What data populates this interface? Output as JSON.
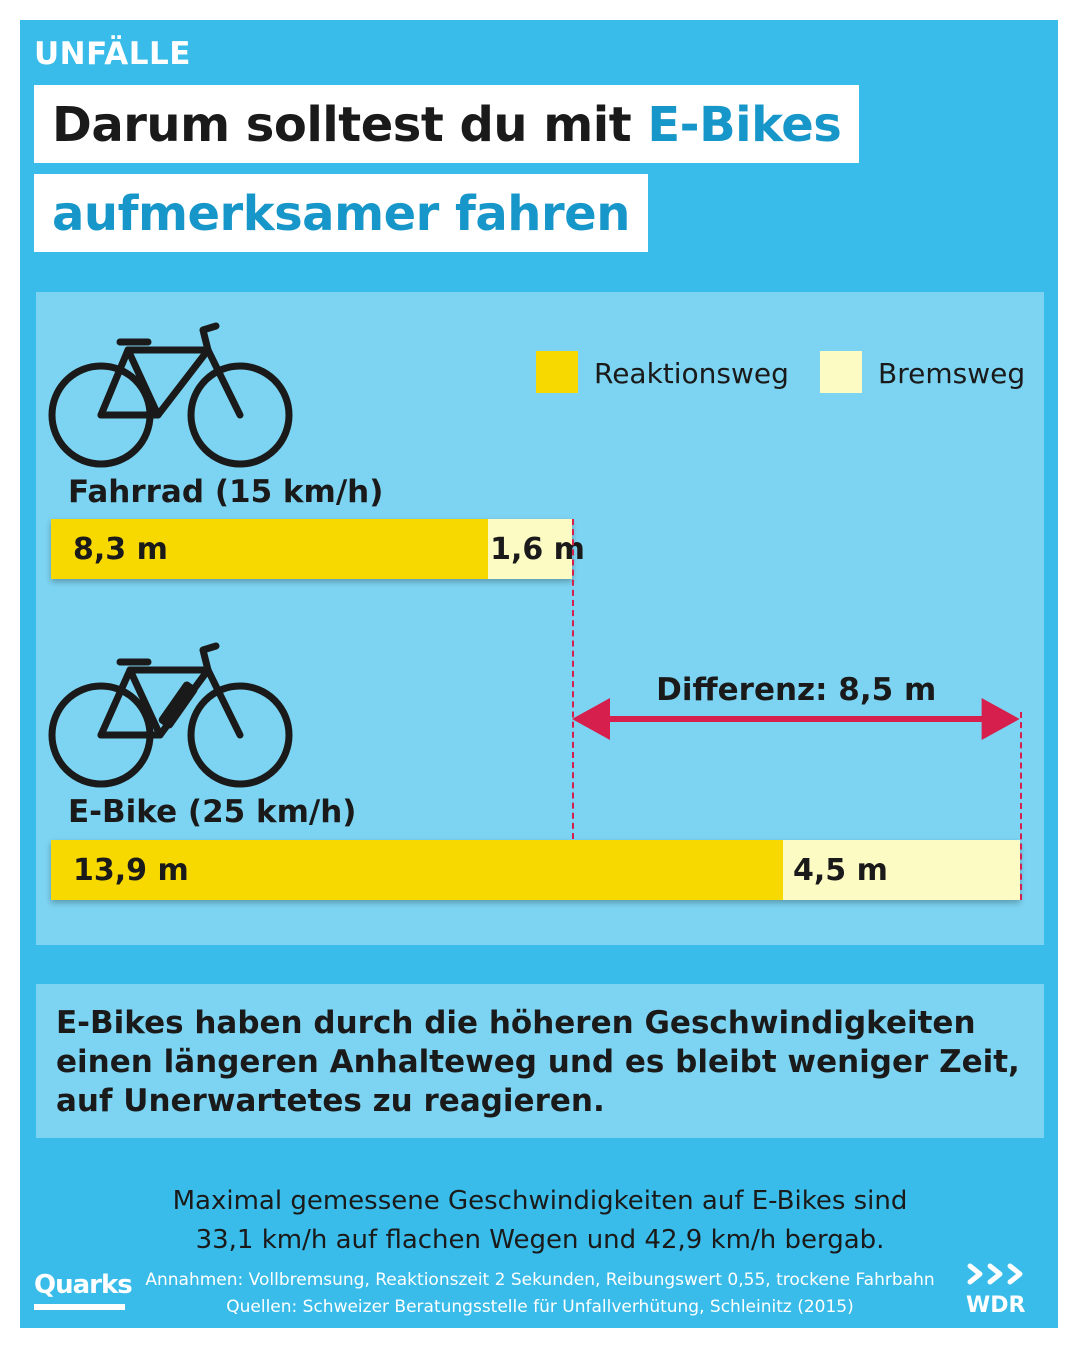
{
  "kicker": "UNFÄLLE",
  "title": {
    "line1_plain": "Darum solltest du mit ",
    "line1_accent": "E-Bikes",
    "line2_accent": "aufmerksamer fahren"
  },
  "colors": {
    "background": "#39bce9",
    "panel": "#7dd4f2",
    "reaktionsweg": "#f7d900",
    "bremsweg": "#fdfbc4",
    "accent_text": "#1797c9",
    "difference_marker": "#d61f4d"
  },
  "icons": [
    "bicycle-icon",
    "e-bike-icon",
    "double-arrow-icon"
  ],
  "chart_data": {
    "type": "bar",
    "orientation": "horizontal",
    "stacked": true,
    "unit": "m",
    "categories": [
      "Fahrrad (15 km/h)",
      "E-Bike (25 km/h)"
    ],
    "series": [
      {
        "name": "Reaktionsweg",
        "values": [
          8.3,
          13.9
        ],
        "labels": [
          "8,3 m",
          "13,9 m"
        ]
      },
      {
        "name": "Bremsweg",
        "values": [
          1.6,
          4.5
        ],
        "labels": [
          "1,6 m",
          "4,5 m"
        ]
      }
    ],
    "xlim": [
      0,
      18.4
    ],
    "legend": {
      "position": "top-right",
      "entries": [
        "Reaktionsweg",
        "Bremsweg"
      ]
    },
    "annotation": {
      "text": "Differenz: 8,5 m",
      "value": 8.5,
      "from": 9.9,
      "to": 18.4
    },
    "grid": false
  },
  "note": "E-Bikes haben durch die höheren Geschwindigkeiten einen längeren Anhalteweg und es bleibt weniger Zeit, auf Unerwartetes zu reagieren.",
  "footer": {
    "line1": "Maximal gemessene Geschwindigkeiten auf E-Bikes sind",
    "line2": "33,1 km/h auf flachen Wegen und 42,9 km/h bergab.",
    "assumptions": "Annahmen: Vollbremsung, Reaktionszeit 2 Sekunden, Reibungswert 0,55, trockene Fahrbahn",
    "sources": "Quellen: Schweizer Beratungsstelle für Unfallverhütung, Schleinitz (2015)"
  },
  "logos": {
    "left": "Quarks",
    "right": "WDR"
  }
}
